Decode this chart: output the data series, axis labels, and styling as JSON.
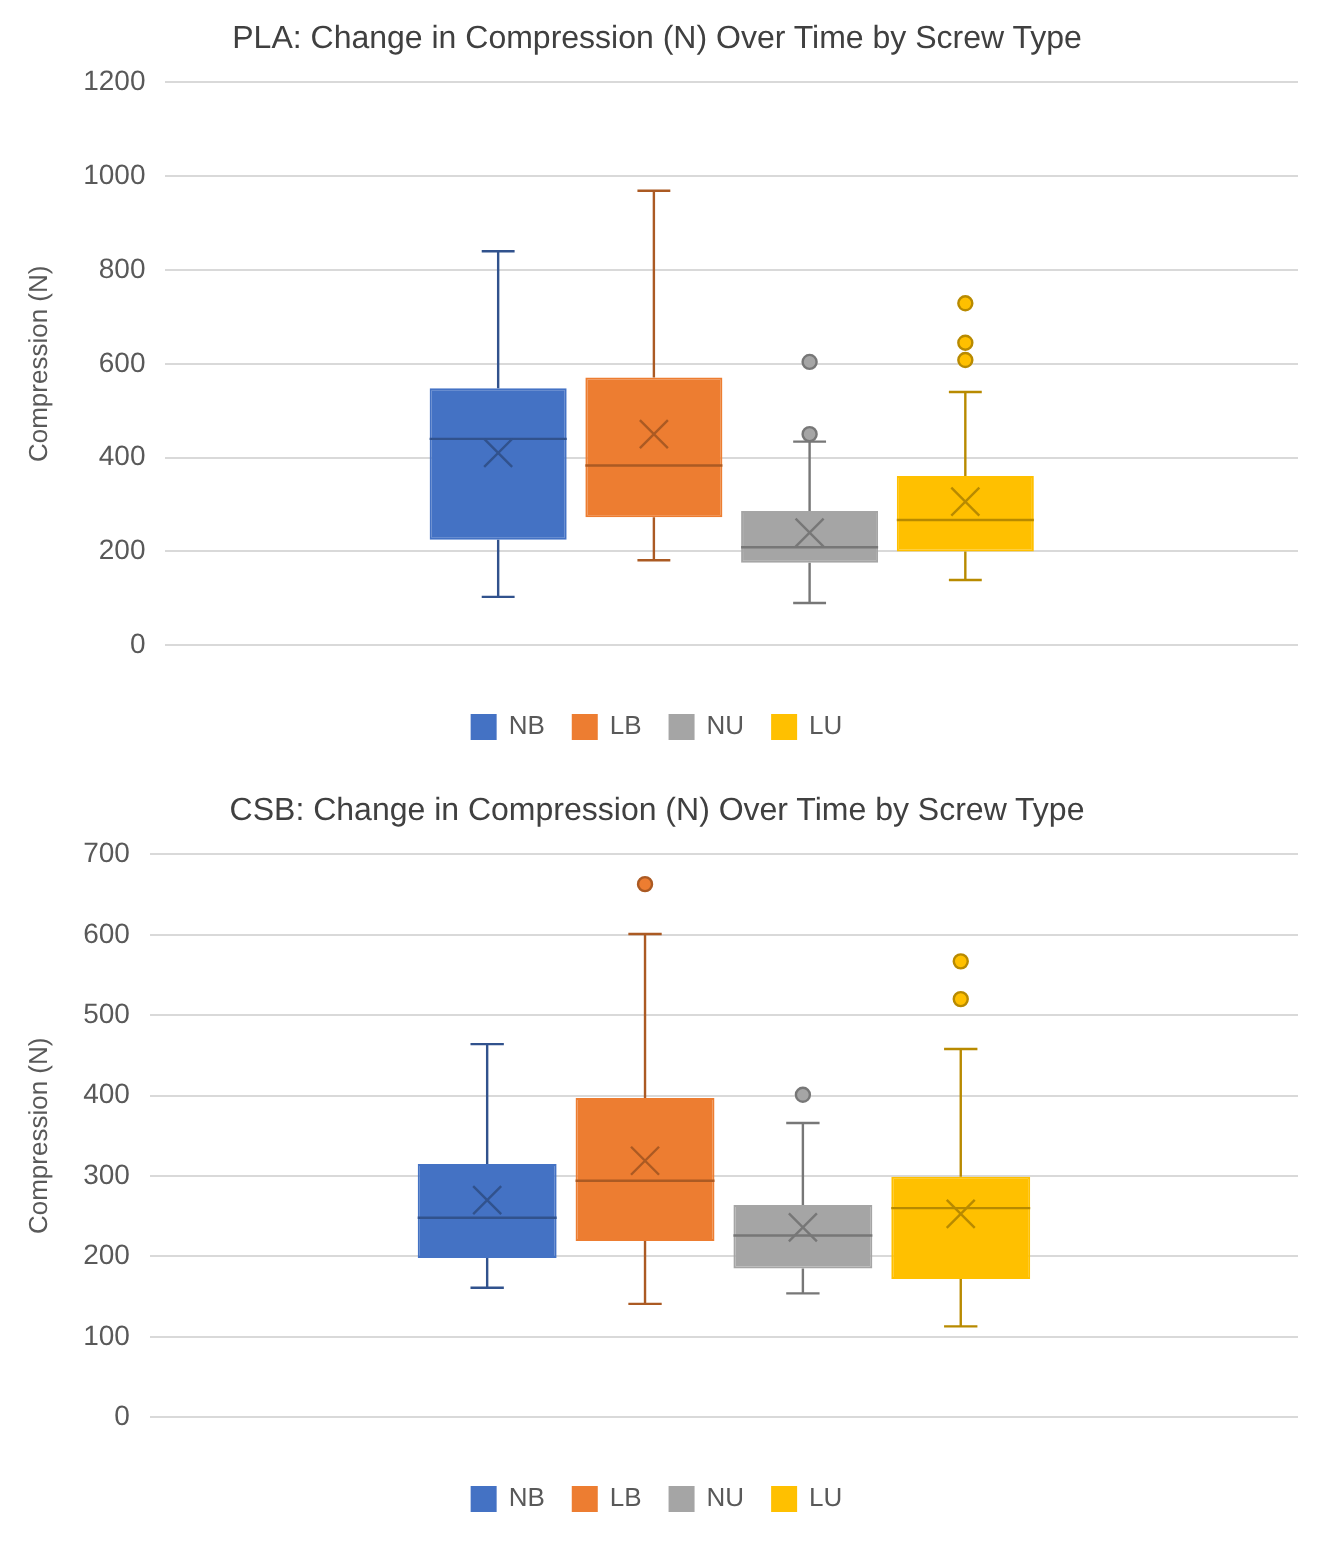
{
  "chart_data": [
    {
      "type": "box",
      "title": "PLA: Change in Compression (N) Over Time by Screw Type",
      "ylabel": "Compression (N)",
      "categories": [
        null
      ],
      "ylim": [
        0,
        1200
      ],
      "yticks": [
        0,
        200,
        400,
        600,
        800,
        1000,
        1200
      ],
      "grid": "y",
      "legend": "bottom",
      "series": [
        {
          "name": "NB",
          "color": "#4472c4",
          "boxes": [
            {
              "low": 103,
              "q1": 225,
              "median": 440,
              "q3": 548,
              "high": 840,
              "mean": 410
            }
          ]
        },
        {
          "name": "LB",
          "color": "#ed7d31",
          "boxes": [
            {
              "low": 181,
              "q1": 273,
              "median": 383,
              "q3": 571,
              "high": 969,
              "mean": 450
            }
          ]
        },
        {
          "name": "NU",
          "color": "#a5a5a5",
          "boxes": [
            {
              "low": 90,
              "q1": 176,
              "median": 209,
              "q3": 286,
              "high": 434,
              "mean": 240,
              "outliers": [
                604,
                450
              ]
            }
          ]
        },
        {
          "name": "LU",
          "color": "#ffc000",
          "boxes": [
            {
              "low": 139,
              "q1": 200,
              "median": 267,
              "q3": 361,
              "high": 540,
              "mean": 306,
              "outliers": [
                729,
                645,
                608
              ]
            }
          ]
        }
      ]
    },
    {
      "type": "box",
      "title": "CSB: Change in Compression (N) Over Time by Screw Type",
      "ylabel": "Compression (N)",
      "categories": [
        null
      ],
      "ylim": [
        0,
        700
      ],
      "yticks": [
        0,
        100,
        200,
        300,
        400,
        500,
        600,
        700
      ],
      "grid": "y",
      "legend": "bottom",
      "series": [
        {
          "name": "NB",
          "color": "#4472c4",
          "boxes": [
            {
              "low": 161,
              "q1": 198,
              "median": 248,
              "q3": 315,
              "high": 464,
              "mean": 270
            }
          ]
        },
        {
          "name": "LB",
          "color": "#ed7d31",
          "boxes": [
            {
              "low": 141,
              "q1": 219,
              "median": 294,
              "q3": 397,
              "high": 601,
              "mean": 319,
              "outliers": [
                663
              ]
            }
          ]
        },
        {
          "name": "NU",
          "color": "#a5a5a5",
          "boxes": [
            {
              "low": 154,
              "q1": 185,
              "median": 226,
              "q3": 264,
              "high": 366,
              "mean": 236,
              "outliers": [
                401
              ]
            }
          ]
        },
        {
          "name": "LU",
          "color": "#ffc000",
          "boxes": [
            {
              "low": 113,
              "q1": 172,
              "median": 260,
              "q3": 299,
              "high": 458,
              "mean": 253,
              "outliers": [
                567,
                520
              ]
            }
          ]
        }
      ]
    }
  ]
}
